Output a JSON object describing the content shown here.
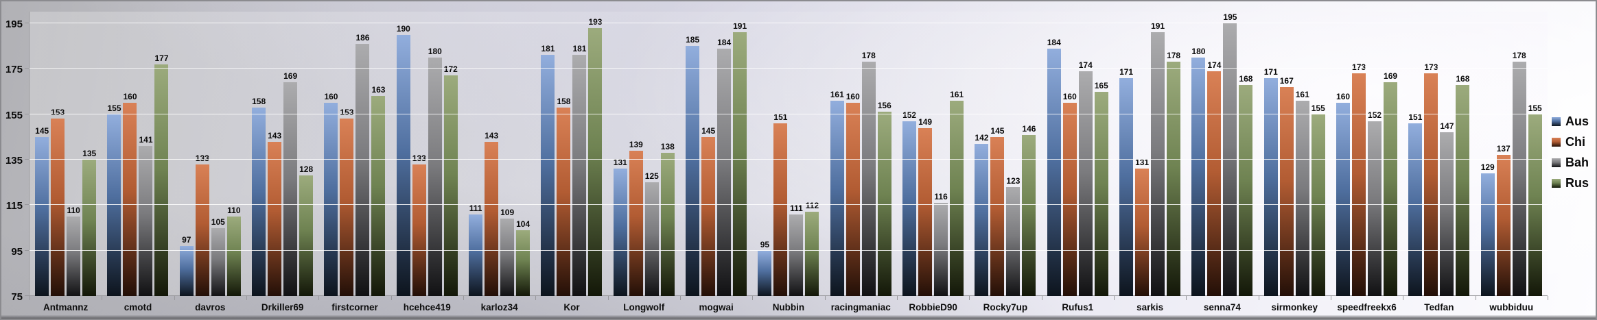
{
  "chart_data": {
    "type": "bar",
    "title": "",
    "categories": [
      "Antmannz",
      "cmotd",
      "davros",
      "Drkiller69",
      "firstcorner",
      "hcehce419",
      "karloz34",
      "Kor",
      "Longwolf",
      "mogwai",
      "Nubbin",
      "racingmaniac",
      "RobbieD90",
      "Rocky7up",
      "Rufus1",
      "sarkis",
      "senna74",
      "sirmonkey",
      "speedfreekx6",
      "Tedfan",
      "wubbiduu"
    ],
    "series": [
      {
        "key": "aus",
        "name": "Aus",
        "colors": {
          "top": "#92aedd",
          "mid": "#4f6f9f",
          "bottom": "#0d141d"
        },
        "values": [
          145,
          155,
          97,
          158,
          160,
          190,
          111,
          181,
          131,
          185,
          95,
          161,
          152,
          142,
          184,
          171,
          180,
          171,
          160,
          151,
          129
        ]
      },
      {
        "key": "chi",
        "name": "Chi",
        "colors": {
          "top": "#d98156",
          "mid": "#b25c33",
          "bottom": "#230f07"
        },
        "values": [
          153,
          160,
          133,
          143,
          153,
          133,
          143,
          158,
          139,
          145,
          151,
          160,
          149,
          145,
          160,
          131,
          174,
          167,
          173,
          173,
          137
        ]
      },
      {
        "key": "bah",
        "name": "Bah",
        "colors": {
          "top": "#acacae",
          "mid": "#7b7b7e",
          "bottom": "#111113"
        },
        "values": [
          110,
          141,
          105,
          169,
          186,
          180,
          109,
          181,
          125,
          184,
          111,
          178,
          116,
          123,
          174,
          191,
          195,
          161,
          152,
          147,
          178
        ]
      },
      {
        "key": "rus",
        "name": "Rus",
        "colors": {
          "top": "#9cab7d",
          "mid": "#6f8352",
          "bottom": "#131708"
        },
        "values": [
          135,
          177,
          110,
          128,
          163,
          172,
          104,
          193,
          138,
          191,
          112,
          156,
          161,
          146,
          165,
          178,
          168,
          155,
          169,
          168,
          155
        ]
      }
    ],
    "y_axis": {
      "min": 75,
      "max": 195,
      "ticks": [
        75,
        95,
        115,
        135,
        155,
        175,
        195
      ]
    },
    "legend": {
      "position": "right"
    },
    "grid": true
  }
}
